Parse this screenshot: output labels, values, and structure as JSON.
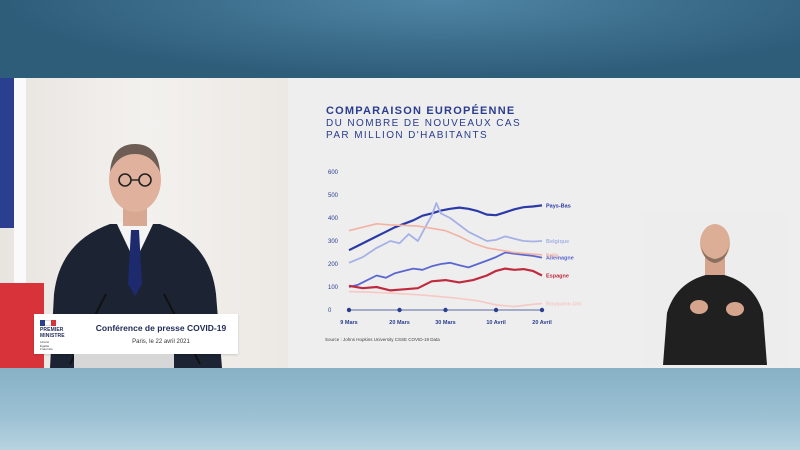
{
  "conference": {
    "title": "Conférence de presse COVID-19",
    "subtitle": "Paris, le 22 avril 2021",
    "logo_text": "PREMIER\nMINISTRE",
    "logo_motto": "Liberté\nÉgalité\nFraternité"
  },
  "colors": {
    "navy": "#1e2a55",
    "title_blue": "#2a3d8f",
    "flag_blue": "#2a3f8f",
    "flag_red": "#d8333b"
  },
  "chart_data": {
    "type": "line",
    "title": "COMPARAISON EUROPÉENNE",
    "subtitle_line1": "DU NOMBRE DE NOUVEAUX CAS",
    "subtitle_line2": "PAR MILLION D'HABITANTS",
    "source": "Source : Johns Hopkins University CSSE COVID-19 Data",
    "ylim": [
      0,
      600
    ],
    "yticks": [
      0,
      100,
      200,
      300,
      400,
      500,
      600
    ],
    "x_tick_labels": [
      "9 Mars",
      "20 Mars",
      "30 Mars",
      "10 Avril",
      "20 Avril"
    ],
    "x_tick_days": [
      0,
      11,
      21,
      32,
      42
    ],
    "grid": false,
    "legend": "right, at line ends",
    "series": [
      {
        "name": "Pays-Bas",
        "color": "#2b3aa8",
        "width": 2.2,
        "x": [
          0,
          2,
          4,
          6,
          8,
          10,
          12,
          14,
          16,
          18,
          20,
          22,
          24,
          26,
          28,
          30,
          32,
          34,
          36,
          38,
          40,
          42
        ],
        "y": [
          260,
          280,
          300,
          320,
          340,
          360,
          375,
          390,
          410,
          420,
          432,
          440,
          445,
          440,
          430,
          415,
          412,
          425,
          438,
          447,
          450,
          455
        ]
      },
      {
        "name": "Belgique",
        "color": "#a6b1e6",
        "width": 1.8,
        "x": [
          0,
          3,
          6,
          9,
          11,
          13,
          15,
          17,
          18,
          19,
          20,
          22,
          24,
          26,
          28,
          30,
          32,
          34,
          36,
          38,
          40,
          42
        ],
        "y": [
          205,
          230,
          270,
          300,
          290,
          330,
          300,
          375,
          410,
          465,
          420,
          400,
          370,
          340,
          320,
          300,
          305,
          320,
          310,
          300,
          298,
          300
        ]
      },
      {
        "name": "Allemagne",
        "color": "#5b67d0",
        "width": 1.8,
        "x": [
          0,
          2,
          4,
          6,
          8,
          10,
          12,
          14,
          16,
          18,
          20,
          22,
          24,
          26,
          28,
          30,
          32,
          34,
          36,
          38,
          40,
          42
        ],
        "y": [
          100,
          110,
          130,
          150,
          140,
          160,
          170,
          180,
          175,
          190,
          200,
          205,
          195,
          185,
          200,
          215,
          230,
          250,
          245,
          240,
          235,
          228
        ]
      },
      {
        "name": "Italie",
        "color": "#f3b3a4",
        "width": 1.6,
        "x": [
          0,
          3,
          6,
          9,
          12,
          15,
          18,
          21,
          24,
          27,
          30,
          33,
          36,
          39,
          42
        ],
        "y": [
          345,
          360,
          375,
          370,
          368,
          365,
          355,
          345,
          320,
          290,
          270,
          260,
          250,
          245,
          240
        ]
      },
      {
        "name": "Espagne",
        "color": "#c02a3e",
        "width": 2.2,
        "x": [
          0,
          3,
          6,
          9,
          12,
          15,
          18,
          21,
          24,
          27,
          30,
          32,
          34,
          36,
          38,
          40,
          42
        ],
        "y": [
          105,
          95,
          100,
          85,
          90,
          95,
          125,
          130,
          120,
          130,
          150,
          170,
          180,
          175,
          178,
          170,
          150
        ]
      },
      {
        "name": "Royaume-Uni",
        "color": "#f6c9c4",
        "width": 1.6,
        "x": [
          0,
          4,
          8,
          12,
          16,
          20,
          24,
          28,
          32,
          36,
          40,
          42
        ],
        "y": [
          80,
          78,
          75,
          70,
          65,
          58,
          50,
          40,
          22,
          15,
          25,
          28
        ]
      }
    ]
  }
}
